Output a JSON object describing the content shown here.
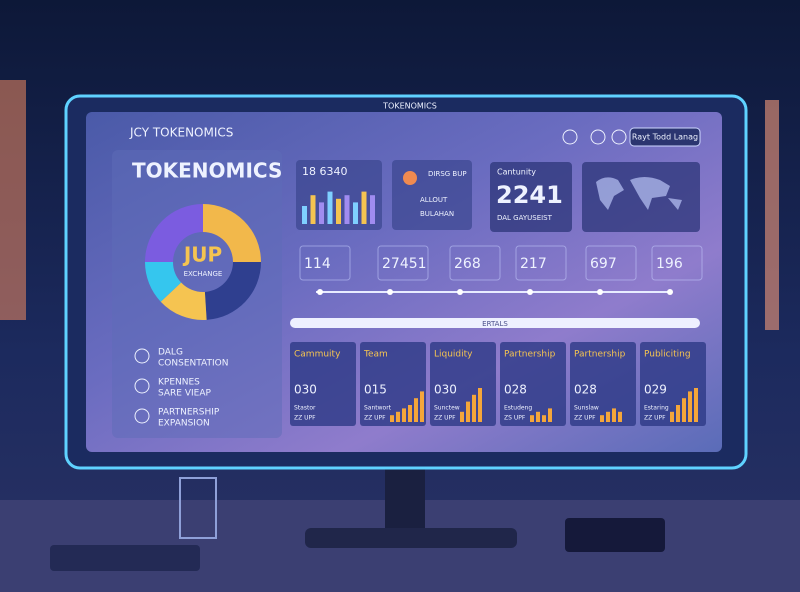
{
  "screen": {
    "caption": "TOKENOMICS",
    "brand": "JCY TOKENOMICS",
    "button": "Rayt Todd Lanag",
    "heading": "TOKENOMICS"
  },
  "donut": {
    "label": "JUP",
    "sublabel": "EXCHANGE",
    "values": [
      25,
      24,
      14,
      12,
      25
    ],
    "colors": [
      "#f2b84b",
      "#2f3f8f",
      "#f5c451",
      "#35c6ee",
      "#7b5ce0"
    ]
  },
  "left_items": [
    [
      "DALG",
      "CONSENTATION"
    ],
    [
      "KPENNES",
      "SARE VIEAP"
    ],
    [
      "PARTNERSHIP",
      "EXPANSION"
    ]
  ],
  "top_cards": {
    "first": {
      "value": "18 6340",
      "bars": [
        5,
        8,
        6,
        9,
        7,
        8,
        6,
        9,
        8
      ],
      "ylim": [
        0,
        10
      ]
    },
    "second": {
      "title": "DIRSG BUP",
      "lines": [
        "ALLOUT",
        "BULAHAN"
      ]
    },
    "third": {
      "label": "Cantunity",
      "value": "2241",
      "sub": "DAL GAYUSEIST"
    }
  },
  "metrics": [
    "114",
    "27451",
    "268",
    "217",
    "697",
    "196"
  ],
  "progress_label": "ERTALS",
  "cards": [
    {
      "title": "Cammuity",
      "value": "030",
      "notes": [
        "Stastor",
        "ZZ UPF"
      ]
    },
    {
      "title": "Team",
      "value": "015",
      "notes": [
        "Santwort",
        "ZZ UPF"
      ],
      "bars": [
        2,
        3,
        4,
        5,
        7,
        9
      ]
    },
    {
      "title": "Liquidity",
      "value": "030",
      "notes": [
        "Sunctew",
        "ZZ UPF"
      ],
      "bars": [
        3,
        6,
        8,
        10
      ]
    },
    {
      "title": "Partnership",
      "value": "028",
      "notes": [
        "Estudeng",
        "ZS UPF"
      ],
      "bars": [
        2,
        3,
        2,
        4
      ]
    },
    {
      "title": "Partnership",
      "value": "028",
      "notes": [
        "Sunslaw",
        "ZZ UPF"
      ],
      "bars": [
        2,
        3,
        4,
        3
      ]
    },
    {
      "title": "Publiciting",
      "value": "029",
      "notes": [
        "Estaring",
        "ZZ UPF"
      ],
      "bars": [
        3,
        5,
        7,
        9,
        10
      ]
    }
  ],
  "cards_ylim": [
    0,
    10
  ]
}
